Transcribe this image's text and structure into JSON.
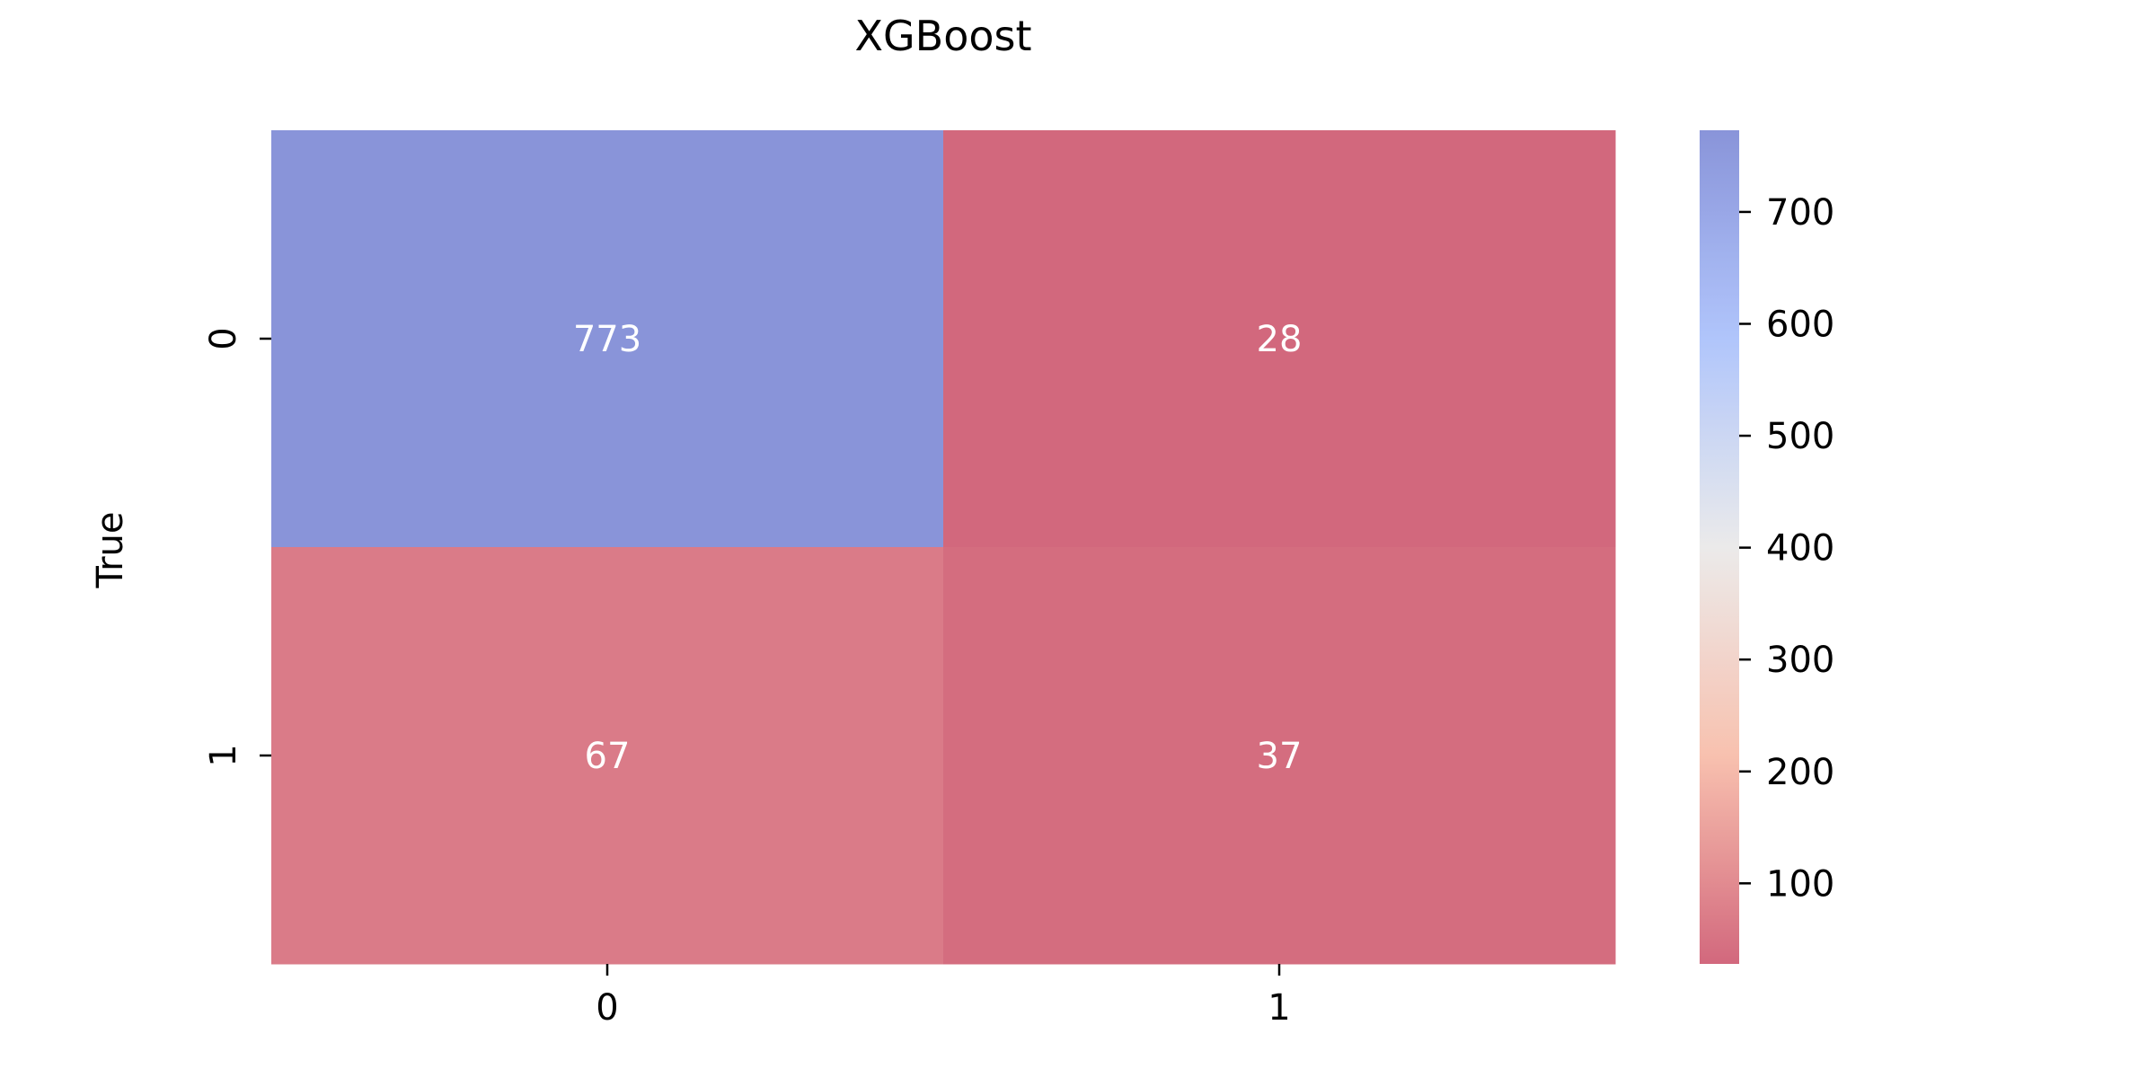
{
  "chart_data": {
    "type": "heatmap",
    "title": "XGBoost",
    "xlabel": "",
    "ylabel": "True",
    "x_categories": [
      "0",
      "1"
    ],
    "y_categories": [
      "0",
      "1"
    ],
    "values": [
      [
        773,
        28
      ],
      [
        67,
        37
      ]
    ],
    "annotation_labels": [
      [
        "773",
        "28"
      ],
      [
        "67",
        "37"
      ]
    ],
    "colormap": "coolwarm_r",
    "cell_alpha": 0.6,
    "colorbar": {
      "min": 28,
      "max": 773,
      "ticks": [
        100,
        200,
        300,
        400,
        500,
        600,
        700
      ],
      "tick_labels": [
        "100",
        "200",
        "300",
        "400",
        "500",
        "600",
        "700"
      ]
    },
    "colors": {
      "low": "#b40426",
      "mid": "#dddcdc",
      "high": "#3b4cc0"
    },
    "grid": false,
    "legend": "none"
  }
}
